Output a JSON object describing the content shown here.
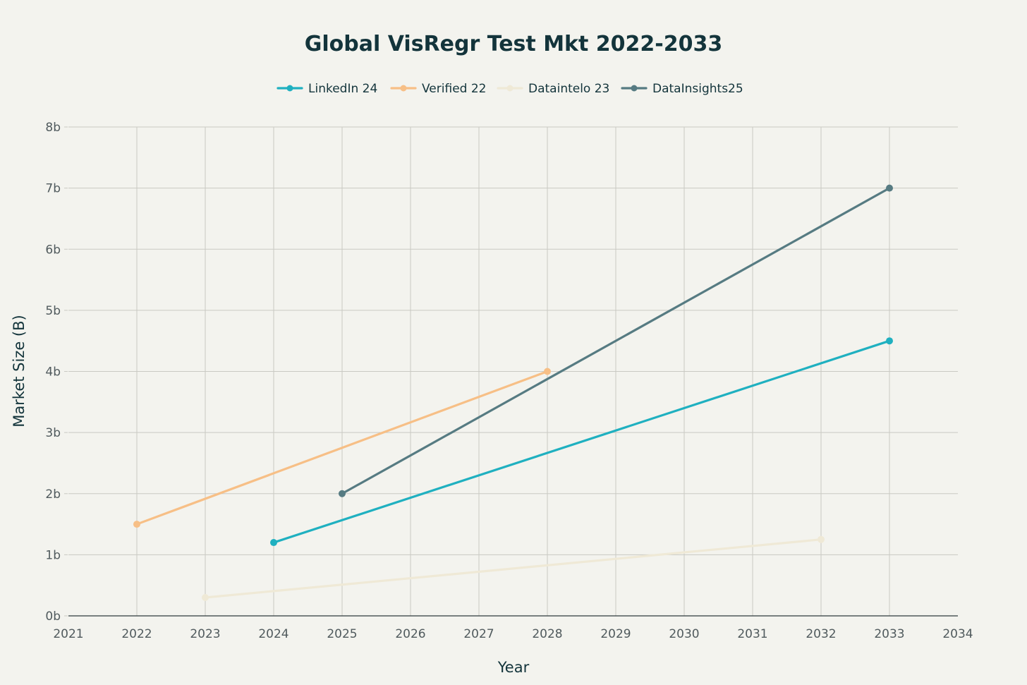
{
  "chart_data": {
    "type": "line",
    "title": "Global VisRegr Test Mkt 2022-2033",
    "xlabel": "Year",
    "ylabel": "Market Size (B)",
    "xlim": [
      2021,
      2034
    ],
    "ylim": [
      0,
      8
    ],
    "x_ticks": [
      2021,
      2022,
      2023,
      2024,
      2025,
      2026,
      2027,
      2028,
      2029,
      2030,
      2031,
      2032,
      2033,
      2034
    ],
    "y_ticks": [
      0,
      1,
      2,
      3,
      4,
      5,
      6,
      7,
      8
    ],
    "y_tick_labels": [
      "0b",
      "1b",
      "2b",
      "3b",
      "4b",
      "5b",
      "6b",
      "7b",
      "8b"
    ],
    "grid": true,
    "legend_position": "top-center",
    "series": [
      {
        "name": "LinkedIn 24",
        "color": "#1fb0c0",
        "x": [
          2024,
          2033
        ],
        "y": [
          1.2,
          4.5
        ]
      },
      {
        "name": "Verified 22",
        "color": "#f7bf86",
        "x": [
          2022,
          2028
        ],
        "y": [
          1.5,
          4.0
        ]
      },
      {
        "name": "Dataintelo 23",
        "color": "#efe9d6",
        "x": [
          2023,
          2032
        ],
        "y": [
          0.3,
          1.25
        ]
      },
      {
        "name": "DataInsights25",
        "color": "#567b82",
        "x": [
          2025,
          2033
        ],
        "y": [
          2.0,
          7.0
        ]
      }
    ]
  }
}
